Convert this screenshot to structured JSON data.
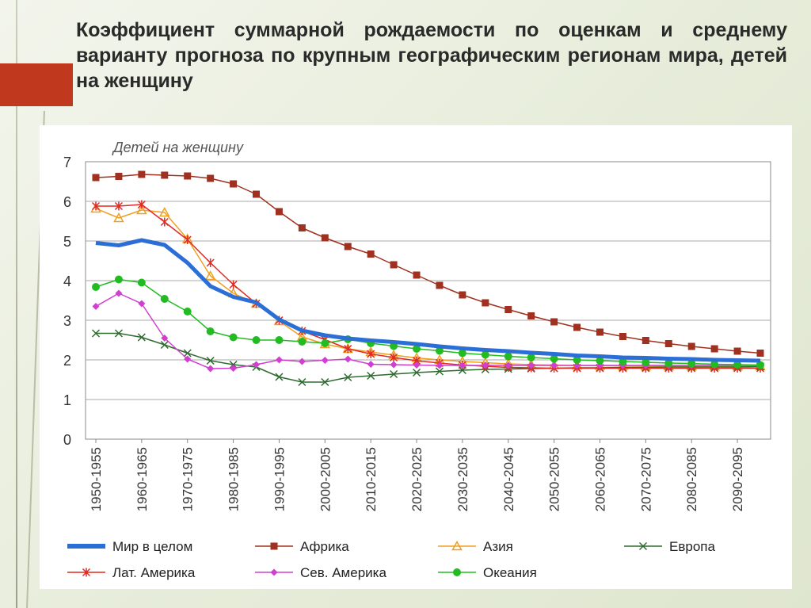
{
  "title": "Коэффициент суммарной рождаемости по оценкам и среднему варианту прогноза по крупным географическим регионам мира, детей на женщину",
  "chart_data": {
    "type": "line",
    "ylabel": "Детей на женщину",
    "ylim": [
      0,
      7
    ],
    "yticks": [
      0,
      1,
      2,
      3,
      4,
      5,
      6,
      7
    ],
    "categories": [
      "1950-1955",
      "1955-1960",
      "1960-1965",
      "1965-1970",
      "1970-1975",
      "1975-1980",
      "1980-1985",
      "1985-1990",
      "1990-1995",
      "1995-2000",
      "2000-2005",
      "2005-2010",
      "2010-2015",
      "2015-2020",
      "2020-2025",
      "2025-2030",
      "2030-2035",
      "2035-2040",
      "2040-2045",
      "2045-2050",
      "2050-2055",
      "2055-2060",
      "2060-2065",
      "2065-2070",
      "2070-2075",
      "2075-2080",
      "2080-2085",
      "2085-2090",
      "2090-2095",
      "2095-2100"
    ],
    "tick_labels": [
      "1950-1955",
      "1960-1965",
      "1970-1975",
      "1980-1985",
      "1990-1995",
      "2000-2005",
      "2010-2015",
      "2020-2025",
      "2030-2035",
      "2040-2045",
      "2050-2055",
      "2060-2065",
      "2070-2075",
      "2080-2085",
      "2090-2095"
    ],
    "series": [
      {
        "name": "Мир в целом",
        "color": "#2b6ed6",
        "marker": "none",
        "values": [
          4.95,
          4.89,
          5.02,
          4.9,
          4.45,
          3.86,
          3.59,
          3.45,
          3.02,
          2.74,
          2.62,
          2.54,
          2.49,
          2.45,
          2.4,
          2.34,
          2.29,
          2.25,
          2.22,
          2.18,
          2.15,
          2.11,
          2.09,
          2.06,
          2.05,
          2.03,
          2.02,
          2.0,
          1.99,
          1.98
        ]
      },
      {
        "name": "Африка",
        "color": "#a0301f",
        "marker": "square",
        "values": [
          6.6,
          6.63,
          6.68,
          6.66,
          6.64,
          6.58,
          6.44,
          6.18,
          5.74,
          5.33,
          5.08,
          4.86,
          4.67,
          4.4,
          4.14,
          3.88,
          3.64,
          3.44,
          3.27,
          3.11,
          2.96,
          2.82,
          2.7,
          2.59,
          2.49,
          2.41,
          2.34,
          2.28,
          2.22,
          2.17
        ]
      },
      {
        "name": "Азия",
        "color": "#f0a020",
        "marker": "triangle",
        "values": [
          5.82,
          5.58,
          5.78,
          5.72,
          5.05,
          4.12,
          3.68,
          3.42,
          2.98,
          2.58,
          2.4,
          2.28,
          2.2,
          2.12,
          2.05,
          2.0,
          1.96,
          1.93,
          1.9,
          1.88,
          1.87,
          1.86,
          1.85,
          1.85,
          1.84,
          1.84,
          1.84,
          1.84,
          1.84,
          1.84
        ]
      },
      {
        "name": "Европа",
        "color": "#2e6b2e",
        "marker": "x",
        "values": [
          2.67,
          2.67,
          2.57,
          2.38,
          2.17,
          1.98,
          1.88,
          1.82,
          1.57,
          1.44,
          1.44,
          1.56,
          1.6,
          1.64,
          1.68,
          1.71,
          1.74,
          1.76,
          1.77,
          1.78,
          1.79,
          1.8,
          1.8,
          1.81,
          1.81,
          1.82,
          1.82,
          1.82,
          1.82,
          1.83
        ]
      },
      {
        "name": "Лат. Америка",
        "color": "#e02a24",
        "marker": "star",
        "values": [
          5.88,
          5.88,
          5.92,
          5.48,
          5.03,
          4.45,
          3.9,
          3.42,
          3.0,
          2.73,
          2.51,
          2.28,
          2.15,
          2.06,
          1.98,
          1.92,
          1.87,
          1.84,
          1.81,
          1.8,
          1.79,
          1.79,
          1.79,
          1.79,
          1.79,
          1.79,
          1.79,
          1.79,
          1.79,
          1.79
        ]
      },
      {
        "name": "Сев. Америка",
        "color": "#d13fd1",
        "marker": "diamond",
        "values": [
          3.35,
          3.68,
          3.42,
          2.55,
          2.02,
          1.78,
          1.79,
          1.88,
          2.0,
          1.96,
          1.99,
          2.02,
          1.89,
          1.88,
          1.87,
          1.86,
          1.86,
          1.86,
          1.86,
          1.86,
          1.86,
          1.86,
          1.86,
          1.86,
          1.86,
          1.86,
          1.86,
          1.86,
          1.86,
          1.86
        ]
      },
      {
        "name": "Океания",
        "color": "#22bb22",
        "marker": "circle",
        "values": [
          3.84,
          4.03,
          3.95,
          3.54,
          3.22,
          2.72,
          2.57,
          2.5,
          2.5,
          2.46,
          2.42,
          2.52,
          2.42,
          2.35,
          2.28,
          2.23,
          2.17,
          2.13,
          2.09,
          2.06,
          2.03,
          2.0,
          1.98,
          1.96,
          1.94,
          1.92,
          1.91,
          1.89,
          1.88,
          1.87
        ]
      }
    ],
    "grid": "horizontal",
    "legend_position": "bottom"
  }
}
